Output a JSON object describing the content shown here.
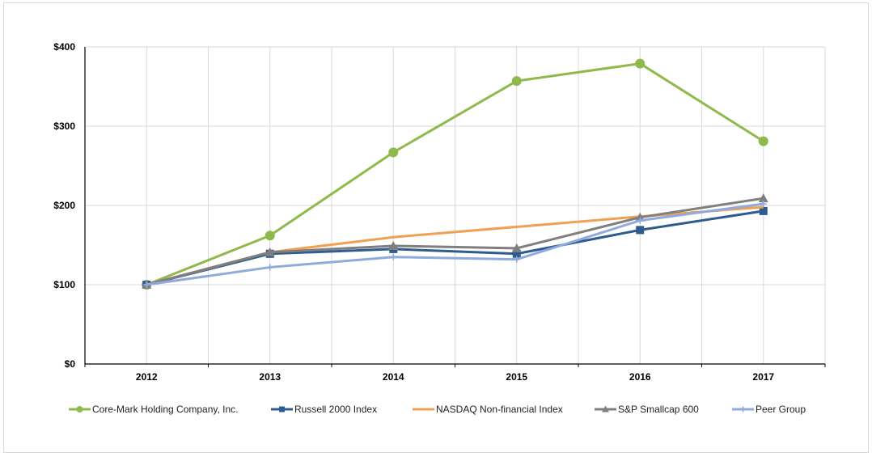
{
  "chart_data": {
    "type": "line",
    "title": "",
    "xlabel": "",
    "ylabel": "",
    "categories": [
      "2012",
      "2013",
      "2014",
      "2015",
      "2016",
      "2017"
    ],
    "ylim": [
      0,
      400
    ],
    "y_ticks": [
      0,
      100,
      200,
      300,
      400
    ],
    "y_tick_labels": [
      "$0",
      "$100",
      "$200",
      "$300",
      "$400"
    ],
    "grid": true,
    "legend_position": "bottom",
    "series": [
      {
        "name": "Core-Mark Holding Company, Inc.",
        "values": [
          100,
          162,
          267,
          357,
          379,
          281
        ],
        "color": "#8fb94a",
        "marker": "circle"
      },
      {
        "name": "Russell 2000 Index",
        "values": [
          100,
          139,
          145,
          139,
          169,
          193
        ],
        "color": "#2e5c8f",
        "marker": "square"
      },
      {
        "name": "NASDAQ Non-financial Index",
        "values": [
          100,
          141,
          160,
          173,
          186,
          198
        ],
        "color": "#f0a050",
        "marker": "none"
      },
      {
        "name": "S&P Smallcap 600",
        "values": [
          100,
          141,
          149,
          146,
          185,
          209
        ],
        "color": "#7f7f7f",
        "marker": "triangle"
      },
      {
        "name": "Peer Group",
        "values": [
          100,
          122,
          135,
          132,
          181,
          202
        ],
        "color": "#8faadc",
        "marker": "plus"
      }
    ]
  }
}
